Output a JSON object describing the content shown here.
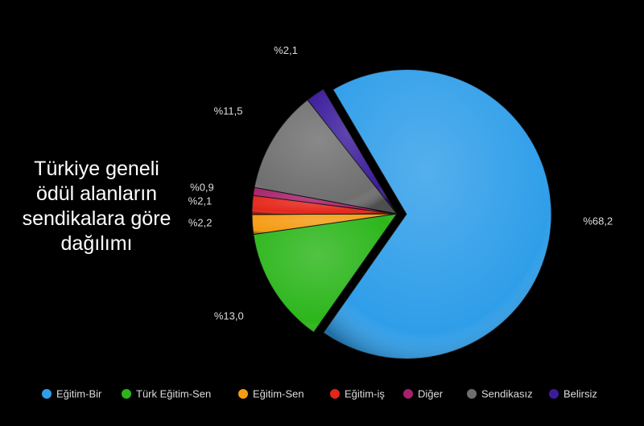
{
  "chart_data": {
    "type": "pie",
    "title": "Türkiye geneli ödül alanların sendikalara göre dağılımı",
    "categories": [
      "Eğitim-Bir",
      "Türk Eğitim-Sen",
      "Eğitim-Sen",
      "Eğitim-iş",
      "Diğer",
      "Sendikasız",
      "Belirsiz"
    ],
    "values": [
      68.2,
      13.0,
      2.2,
      2.1,
      0.9,
      11.5,
      2.1
    ],
    "value_labels": [
      "%68,2",
      "%13,0",
      "%2,2",
      "%2,1",
      "%0,9",
      "%11,5",
      "%2,1"
    ],
    "colors": [
      "#2f9ee9",
      "#2cb61b",
      "#f59b12",
      "#e5261b",
      "#a8216c",
      "#6f6f6f",
      "#3b1c9c"
    ],
    "legend": "bottom"
  }
}
